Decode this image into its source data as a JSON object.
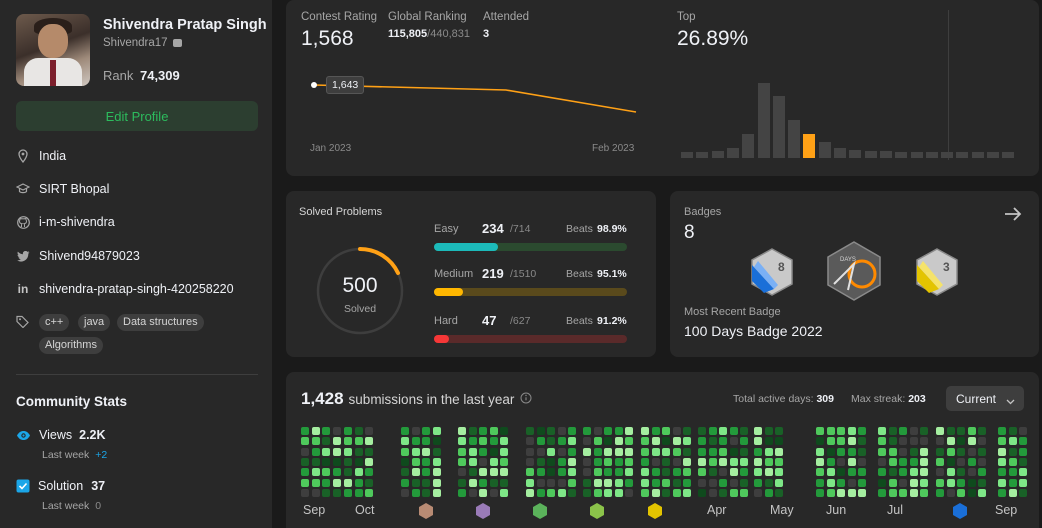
{
  "profile": {
    "name": "Shivendra Pratap Singh",
    "username": "Shivendra17",
    "rank_label": "Rank",
    "rank_value": "74,309",
    "edit_label": "Edit Profile",
    "location": "India",
    "school": "SIRT Bhopal",
    "github": "i-m-shivendra",
    "twitter": "Shivend94879023",
    "linkedin": "shivendra-pratap-singh-420258220",
    "skills": [
      "c++",
      "java",
      "Data structures",
      "Algorithms"
    ]
  },
  "community": {
    "title": "Community Stats",
    "views_label": "Views",
    "views_value": "2.2K",
    "views_week_label": "Last week",
    "views_week_value": "+2",
    "solution_label": "Solution",
    "solution_value": "37",
    "solution_week_label": "Last week",
    "solution_week_value": "0"
  },
  "contest": {
    "rating_label": "Contest Rating",
    "rating_value": "1,568",
    "global_label": "Global Ranking",
    "global_value": "115,805",
    "global_total": "/440,831",
    "attended_label": "Attended",
    "attended_value": "3",
    "top_label": "Top",
    "top_value": "26.89%",
    "tooltip": "1,643",
    "x_start": "Jan 2023",
    "x_end": "Feb 2023",
    "histogram_highlight_index": 8,
    "accent": "#ffa116"
  },
  "solved": {
    "title": "Solved Problems",
    "total": "500",
    "total_label": "Solved",
    "beats_label": "Beats",
    "rows": [
      {
        "name": "Easy",
        "count": "234",
        "total": "/714",
        "beats": "98.9%",
        "fraction": 0.33,
        "color": "#1cbaba",
        "track": "#2b4a2f"
      },
      {
        "name": "Medium",
        "count": "219",
        "total": "/1510",
        "beats": "95.1%",
        "fraction": 0.15,
        "color": "#ffb700",
        "track": "#5a4a1c"
      },
      {
        "name": "Hard",
        "count": "47",
        "total": "/627",
        "beats": "91.2%",
        "fraction": 0.08,
        "color": "#f63737",
        "track": "#5a2a2a"
      }
    ]
  },
  "badges": {
    "title": "Badges",
    "count": "8",
    "recent_label": "Most Recent Badge",
    "recent_name": "100 Days Badge 2022",
    "badge1_text": "8",
    "badge2_text": "DAYS",
    "badge3_text": "3"
  },
  "submissions": {
    "count": "1,428",
    "label": "submissions in the last year",
    "active_label": "Total active days:",
    "active_value": "309",
    "streak_label": "Max streak:",
    "streak_value": "203",
    "select_value": "Current",
    "months": [
      "Sep",
      "Oct",
      "Apr",
      "May",
      "Jun",
      "Jul",
      "Sep"
    ]
  }
}
